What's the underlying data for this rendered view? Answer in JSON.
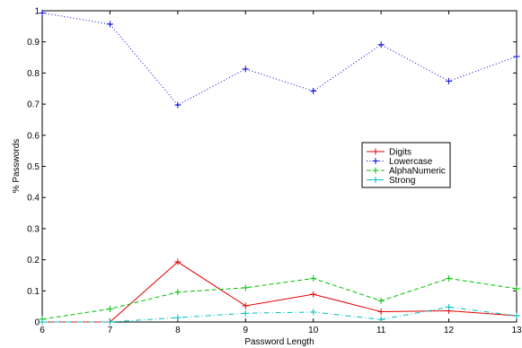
{
  "chart_data": {
    "type": "line",
    "title": "",
    "xlabel": "Password Length",
    "ylabel": "% Passwords",
    "xlim": [
      6,
      13
    ],
    "ylim": [
      0,
      1
    ],
    "x": [
      6,
      7,
      8,
      9,
      10,
      11,
      12,
      13
    ],
    "x_ticks": [
      "6",
      "7",
      "8",
      "9",
      "10",
      "11",
      "12",
      "13"
    ],
    "y_ticks": [
      "0",
      "0.1",
      "0.2",
      "0.3",
      "0.4",
      "0.5",
      "0.6",
      "0.7",
      "0.8",
      "0.9",
      "1"
    ],
    "grid": false,
    "legend_position": "center-right",
    "series": [
      {
        "name": "Digits",
        "color": "#e00000",
        "dash": "solid",
        "values": [
          0.0,
          0.0,
          0.193,
          0.052,
          0.089,
          0.033,
          0.036,
          0.02
        ]
      },
      {
        "name": "Lowercase",
        "color": "#0000e0",
        "dash": "dotted",
        "values": [
          0.993,
          0.957,
          0.697,
          0.813,
          0.742,
          0.891,
          0.774,
          0.853
        ]
      },
      {
        "name": "AlphaNumeric",
        "color": "#00c000",
        "dash": "dashed",
        "values": [
          0.009,
          0.042,
          0.096,
          0.11,
          0.14,
          0.068,
          0.14,
          0.107
        ]
      },
      {
        "name": "Strong",
        "color": "#00c0c0",
        "dash": "dashdot",
        "values": [
          0.0,
          0.0,
          0.014,
          0.028,
          0.032,
          0.008,
          0.048,
          0.02
        ]
      }
    ]
  }
}
